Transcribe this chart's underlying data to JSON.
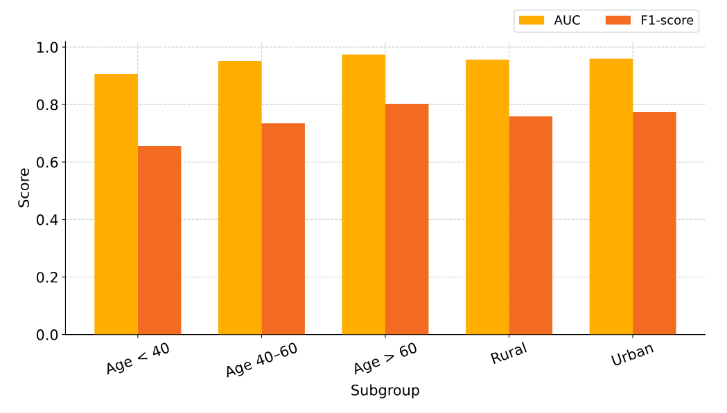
{
  "chart_data": {
    "type": "bar",
    "xlabel": "Subgroup",
    "ylabel": "Score",
    "categories": [
      "Age < 40",
      "Age 40–60",
      "Age > 60",
      "Rural",
      "Urban"
    ],
    "series": [
      {
        "name": "AUC",
        "color": "#ffae00",
        "values": [
          0.906,
          0.952,
          0.974,
          0.956,
          0.96
        ]
      },
      {
        "name": "F1-score",
        "color": "#f26b21",
        "values": [
          0.656,
          0.735,
          0.803,
          0.759,
          0.774
        ]
      }
    ],
    "ylim": [
      0,
      1.02
    ],
    "yticks": [
      {
        "value": 0,
        "label": "0.0"
      },
      {
        "value": 0.2,
        "label": "0.2"
      },
      {
        "value": 0.4,
        "label": "0.4"
      },
      {
        "value": 0.6,
        "label": "0.6"
      },
      {
        "value": 0.8,
        "label": "0.8"
      },
      {
        "value": 1,
        "label": "1.0"
      }
    ],
    "grid": true,
    "legend": "top right"
  }
}
